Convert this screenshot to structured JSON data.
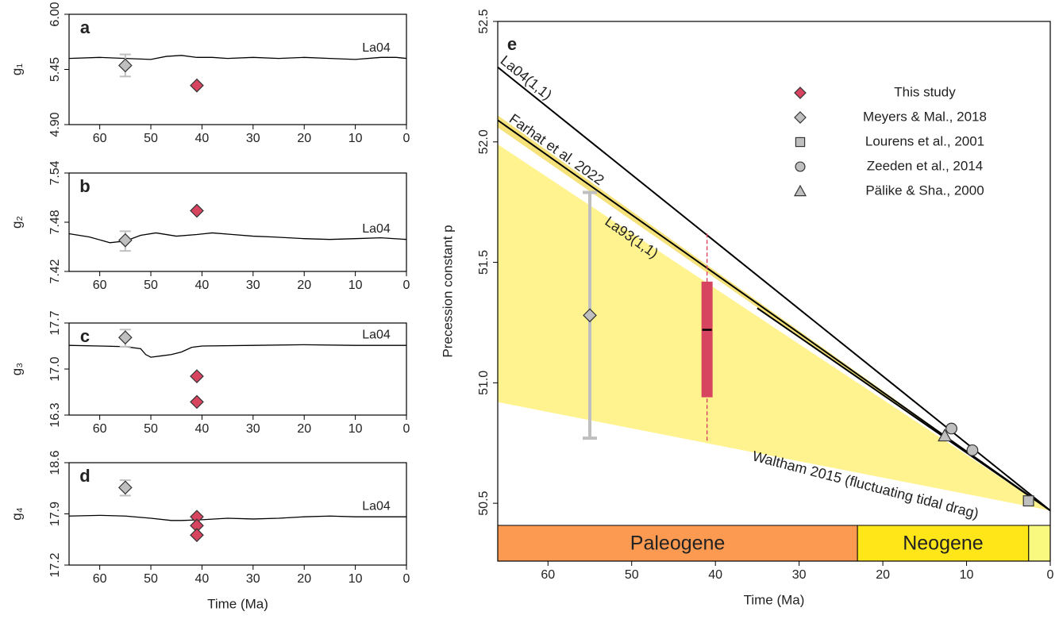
{
  "chart_data": [
    {
      "type": "line",
      "panel_label": "a",
      "ylabel": "g₁",
      "xlim": [
        66,
        0
      ],
      "ylim": [
        4.9,
        6.0
      ],
      "xticks": [
        60,
        50,
        40,
        30,
        20,
        10,
        0
      ],
      "yticks": [
        {
          "value": 4.9,
          "label": "4.90"
        },
        5.45,
        {
          "value": 6,
          "label": "6.00"
        }
      ],
      "series": [
        {
          "name": "La04",
          "type": "line",
          "color": "#000000",
          "x": [
            66,
            60,
            55,
            50,
            47,
            44,
            41,
            38,
            35,
            30,
            25,
            20,
            15,
            10,
            5,
            2,
            0
          ],
          "values": [
            5.56,
            5.57,
            5.56,
            5.55,
            5.58,
            5.59,
            5.57,
            5.57,
            5.56,
            5.57,
            5.56,
            5.57,
            5.56,
            5.55,
            5.57,
            5.57,
            5.56
          ]
        },
        {
          "type": "point",
          "marker": "diamond",
          "color": "#bfbfbf",
          "x": [
            55
          ],
          "values": [
            5.49
          ],
          "error_low": [
            5.38
          ],
          "error_high": [
            5.6
          ]
        },
        {
          "type": "point",
          "marker": "diamond",
          "color": "#d6445f",
          "x": [
            41
          ],
          "values": [
            5.29
          ]
        }
      ]
    },
    {
      "type": "line",
      "panel_label": "b",
      "ylabel": "g₂",
      "xlim": [
        66,
        0
      ],
      "ylim": [
        7.42,
        7.54
      ],
      "xticks": [
        60,
        50,
        40,
        30,
        20,
        10,
        0
      ],
      "yticks": [
        7.42,
        7.48,
        7.54
      ],
      "series": [
        {
          "name": "La04",
          "type": "line",
          "color": "#000000",
          "x": [
            66,
            62,
            58,
            55,
            52,
            49,
            45,
            41,
            38,
            34,
            30,
            26,
            20,
            15,
            10,
            5,
            0
          ],
          "values": [
            7.466,
            7.462,
            7.455,
            7.457,
            7.464,
            7.467,
            7.463,
            7.465,
            7.467,
            7.465,
            7.463,
            7.462,
            7.46,
            7.459,
            7.46,
            7.461,
            7.459
          ]
        },
        {
          "type": "point",
          "marker": "diamond",
          "color": "#bfbfbf",
          "x": [
            55
          ],
          "values": [
            7.458
          ],
          "error_low": [
            7.445
          ],
          "error_high": [
            7.469
          ]
        },
        {
          "type": "point",
          "marker": "diamond",
          "color": "#d6445f",
          "x": [
            41
          ],
          "values": [
            7.494
          ]
        }
      ]
    },
    {
      "type": "line",
      "panel_label": "c",
      "ylabel": "g₃",
      "xlim": [
        66,
        0
      ],
      "ylim": [
        16.3,
        17.7
      ],
      "xticks": [
        60,
        50,
        40,
        30,
        20,
        10,
        0
      ],
      "yticks": [
        16.3,
        {
          "value": 17,
          "label": "17.0"
        },
        17.7
      ],
      "series": [
        {
          "name": "La04",
          "type": "line",
          "color": "#000000",
          "x": [
            66,
            60,
            55,
            52,
            51,
            50,
            48,
            46,
            44,
            42,
            40,
            30,
            20,
            10,
            0
          ],
          "values": [
            17.36,
            17.35,
            17.34,
            17.31,
            17.22,
            17.18,
            17.2,
            17.22,
            17.26,
            17.33,
            17.35,
            17.36,
            17.37,
            17.36,
            17.36
          ]
        },
        {
          "type": "point",
          "marker": "diamond",
          "color": "#bfbfbf",
          "x": [
            55
          ],
          "values": [
            17.48
          ],
          "error_low": [
            17.34
          ],
          "error_high": [
            17.6
          ]
        },
        {
          "type": "point",
          "marker": "diamond",
          "color": "#d6445f",
          "x": [
            41,
            41
          ],
          "values": [
            16.89,
            16.5
          ]
        }
      ]
    },
    {
      "type": "line",
      "panel_label": "d",
      "ylabel": "g₄",
      "xlabel": "Time (Ma)",
      "xlim": [
        66,
        0
      ],
      "ylim": [
        17.2,
        18.6
      ],
      "xticks": [
        60,
        50,
        40,
        30,
        20,
        10,
        0
      ],
      "yticks": [
        17.2,
        17.9,
        18.6
      ],
      "series": [
        {
          "name": "La04",
          "type": "line",
          "color": "#000000",
          "x": [
            66,
            60,
            55,
            50,
            46,
            44,
            40,
            35,
            30,
            25,
            20,
            15,
            10,
            5,
            0
          ],
          "values": [
            17.87,
            17.88,
            17.87,
            17.84,
            17.81,
            17.81,
            17.82,
            17.84,
            17.83,
            17.84,
            17.86,
            17.87,
            17.86,
            17.86,
            17.86
          ]
        },
        {
          "type": "point",
          "marker": "diamond",
          "color": "#bfbfbf",
          "x": [
            55
          ],
          "values": [
            18.26
          ],
          "error_low": [
            18.15
          ],
          "error_high": [
            18.36
          ]
        },
        {
          "type": "point",
          "marker": "diamond",
          "color": "#d6445f",
          "x": [
            41,
            41,
            41
          ],
          "values": [
            17.86,
            17.74,
            17.61
          ]
        }
      ]
    },
    {
      "type": "line",
      "panel_label": "e",
      "ylabel": "Precession constant p",
      "xlabel": "Time (Ma)",
      "xlim": [
        66,
        0
      ],
      "ylim": [
        50.26,
        52.5
      ],
      "xticks": [
        60,
        50,
        40,
        30,
        20,
        10,
        0
      ],
      "yticks": [
        50.5,
        {
          "value": 51,
          "label": "51.0"
        },
        51.5,
        {
          "value": 52,
          "label": "52.0"
        },
        52.5
      ],
      "series": [
        {
          "type": "area",
          "color": "#fff38f",
          "x": [
            66,
            0
          ],
          "upper": [
            51.99,
            50.47
          ],
          "lower": [
            50.92,
            50.47
          ]
        },
        {
          "type": "area",
          "color": "#f5e27a",
          "x": [
            66,
            0
          ],
          "upper": [
            52.11,
            50.47
          ],
          "lower": [
            52.06,
            50.47
          ]
        },
        {
          "name": "La04(1,1)",
          "type": "line",
          "color": "#000000",
          "x": [
            66,
            0
          ],
          "values": [
            52.31,
            50.47
          ]
        },
        {
          "name": "Farhat et al. 2022",
          "type": "line",
          "color": "#000000",
          "x": [
            66,
            0
          ],
          "values": [
            52.09,
            50.47
          ]
        },
        {
          "type": "line",
          "color": "#000000",
          "x": [
            35,
            0
          ],
          "values": [
            51.31,
            50.47
          ]
        },
        {
          "name": "This study",
          "type": "box",
          "marker": "diamond",
          "color": "#d6445f",
          "x": [
            41
          ],
          "median": [
            51.22
          ],
          "q1": [
            50.94
          ],
          "q3": [
            51.42
          ],
          "whisker_low": [
            50.76
          ],
          "whisker_high": [
            51.63
          ]
        },
        {
          "name": "Meyers & Mal., 2018",
          "type": "point",
          "marker": "diamond",
          "color": "#bfbfbf",
          "x": [
            55
          ],
          "values": [
            51.28
          ],
          "error_low": [
            50.77
          ],
          "error_high": [
            51.79
          ]
        },
        {
          "name": "Lourens et al., 2001",
          "type": "point",
          "marker": "square",
          "color": "#bfbfbf",
          "x": [
            2.6
          ],
          "values": [
            50.51
          ]
        },
        {
          "name": "Zeeden et al., 2014",
          "type": "point",
          "marker": "circle",
          "color": "#bfbfbf",
          "x": [
            11.8,
            9.3
          ],
          "values": [
            50.81,
            50.72
          ]
        },
        {
          "name": "Pälike & Sha., 2000",
          "type": "point",
          "marker": "triangle",
          "color": "#bfbfbf",
          "x": [
            12.6
          ],
          "values": [
            50.78
          ]
        }
      ],
      "annotations": [
        "La93(1,1)",
        "Waltham 2015 (fluctuating tidal drag)"
      ],
      "periods": [
        {
          "name": "Paleogene",
          "start": 66,
          "end": 23.03,
          "color": "#fd9a52"
        },
        {
          "name": "Neogene",
          "start": 23.03,
          "end": 2.58,
          "color": "#ffe619"
        },
        {
          "name": null,
          "start": 2.58,
          "end": 0,
          "color": "#f9f97f"
        }
      ]
    }
  ]
}
